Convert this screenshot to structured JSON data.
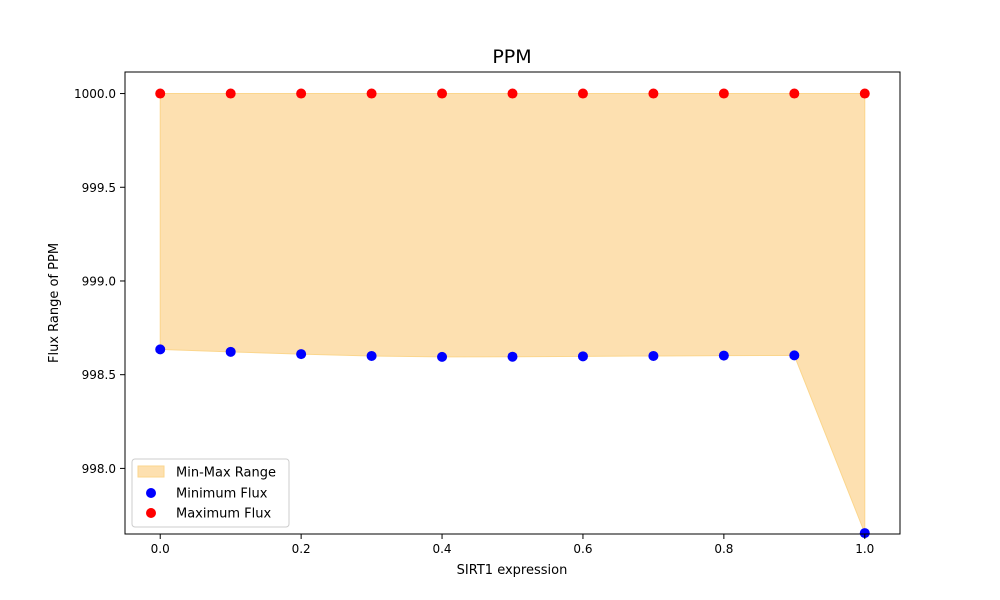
{
  "chart_data": {
    "type": "scatter",
    "title": "PPM",
    "xlabel": "SIRT1 expression",
    "ylabel": "Flux Range of PPM",
    "xlim": [
      -0.05,
      1.05
    ],
    "ylim": [
      997.65,
      1000.115
    ],
    "x_ticks": [
      0.0,
      0.2,
      0.4,
      0.6,
      0.8,
      1.0
    ],
    "x_tick_labels": [
      "0.0",
      "0.2",
      "0.4",
      "0.6",
      "0.8",
      "1.0"
    ],
    "y_ticks": [
      998.0,
      998.5,
      999.0,
      999.5,
      1000.0
    ],
    "y_tick_labels": [
      "998.0",
      "998.5",
      "999.0",
      "999.5",
      "1000.0"
    ],
    "grid": false,
    "legend_position": "lower-left",
    "x": [
      0.0,
      0.1,
      0.2,
      0.3,
      0.4,
      0.5,
      0.6,
      0.7,
      0.8,
      0.9,
      1.0
    ],
    "fill": {
      "name": "Min-Max Range",
      "color": "#fde0b0",
      "edge_color": "#fbd68d"
    },
    "series": [
      {
        "name": "Minimum Flux",
        "color": "#0000ff",
        "values": [
          998.635,
          998.622,
          998.61,
          998.6,
          998.595,
          998.596,
          998.598,
          998.6,
          998.602,
          998.603,
          997.655
        ]
      },
      {
        "name": "Maximum Flux",
        "color": "#ff0000",
        "values": [
          1000.0,
          1000.0,
          1000.0,
          1000.0,
          1000.0,
          1000.0,
          1000.0,
          1000.0,
          1000.0,
          1000.0,
          1000.0
        ]
      }
    ]
  }
}
